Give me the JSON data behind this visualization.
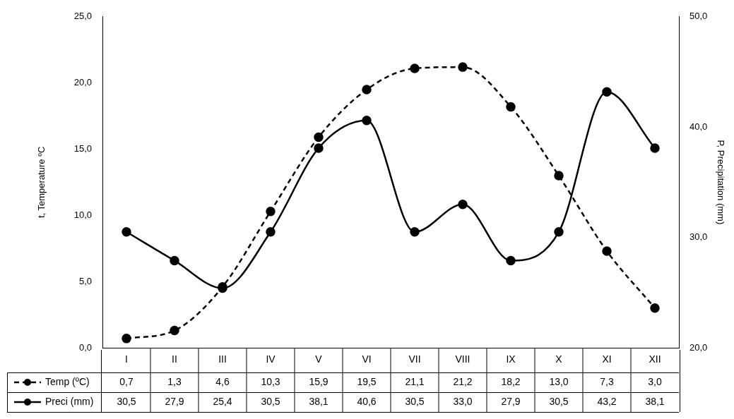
{
  "chart_data": {
    "type": "line",
    "categories": [
      "I",
      "II",
      "III",
      "IV",
      "V",
      "VI",
      "VII",
      "VIII",
      "IX",
      "X",
      "XI",
      "XII"
    ],
    "series": [
      {
        "name": "Temp (ºC)",
        "color": "#000000",
        "line_style": "dashed",
        "values": [
          0.7,
          1.3,
          4.6,
          10.3,
          15.9,
          19.5,
          21.1,
          21.2,
          18.2,
          13.0,
          7.3,
          3.0
        ],
        "value_labels": [
          "0,7",
          "1,3",
          "4,6",
          "10,3",
          "15,9",
          "19,5",
          "21,1",
          "21,2",
          "18,2",
          "13,0",
          "7,3",
          "3,0"
        ]
      },
      {
        "name": "Preci (mm)",
        "color": "#000000",
        "line_style": "solid",
        "axis": "y2",
        "values": [
          30.5,
          27.9,
          25.4,
          30.5,
          38.1,
          40.6,
          30.5,
          33.0,
          27.9,
          30.5,
          43.2,
          38.1
        ],
        "value_labels": [
          "30,5",
          "27,9",
          "25,4",
          "30,5",
          "38,1",
          "40,6",
          "30,5",
          "33,0",
          "27,9",
          "30,5",
          "43,2",
          "38,1"
        ]
      }
    ],
    "ylabel": "t, Temperature ºC",
    "y2label": "P, Precipitation (mm)",
    "ylim": [
      0,
      25
    ],
    "yticks": [
      {
        "value": 0,
        "label": "0,0"
      },
      {
        "value": 5,
        "label": "5,0"
      },
      {
        "value": 10,
        "label": "10,0"
      },
      {
        "value": 15,
        "label": "15,0"
      },
      {
        "value": 20,
        "label": "20,0"
      },
      {
        "value": 25,
        "label": "25,0"
      }
    ],
    "y2lim": [
      20,
      50
    ],
    "y2ticks": [
      {
        "value": 20,
        "label": "20,0"
      },
      {
        "value": 30,
        "label": "30,0"
      },
      {
        "value": 40,
        "label": "40,0"
      },
      {
        "value": 50,
        "label": "50,0"
      }
    ],
    "grid": false,
    "legend": "bottom",
    "marker": "circle"
  }
}
